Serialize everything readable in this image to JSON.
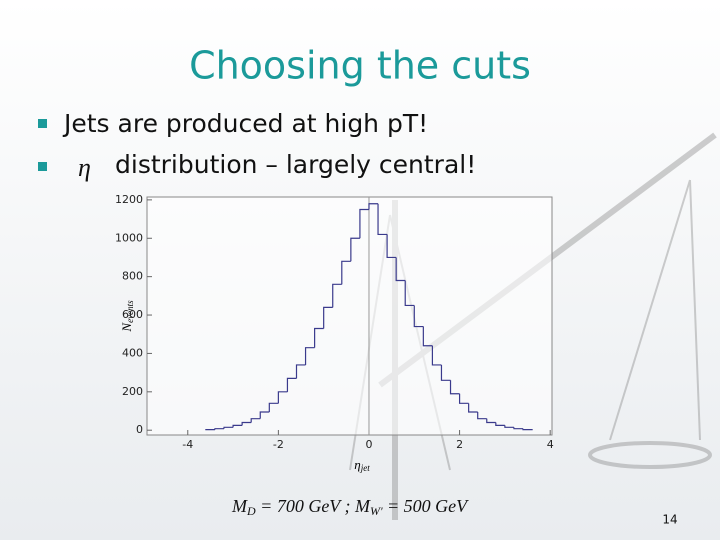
{
  "slide": {
    "title": "Choosing the cuts",
    "bullets": [
      "Jets are produced at high pT!",
      "distribution – largely central!"
    ],
    "bullet_symbol": "η",
    "caption_parts": [
      "M",
      "D",
      " = 700 GeV ; M",
      "W'",
      " = 500 GeV"
    ],
    "page_number": "14"
  },
  "chart_data": {
    "type": "histogram",
    "xlabel": {
      "main": "η",
      "sub": "jet"
    },
    "ylabel": {
      "main": "N",
      "sub": "events"
    },
    "bins": [
      -3.6,
      -3.4,
      -3.2,
      -3.0,
      -2.8,
      -2.6,
      -2.4,
      -2.2,
      -2.0,
      -1.8,
      -1.6,
      -1.4,
      -1.2,
      -1.0,
      -0.8,
      -0.6,
      -0.4,
      -0.2,
      0.0,
      0.2,
      0.4,
      0.6,
      0.8,
      1.0,
      1.2,
      1.4,
      1.6,
      1.8,
      2.0,
      2.2,
      2.4,
      2.6,
      2.8,
      3.0,
      3.2,
      3.4,
      3.6
    ],
    "values": [
      3,
      8,
      15,
      25,
      40,
      60,
      95,
      140,
      200,
      270,
      340,
      430,
      530,
      640,
      760,
      880,
      1000,
      1150,
      1180,
      1020,
      900,
      780,
      650,
      540,
      440,
      340,
      260,
      190,
      140,
      95,
      60,
      40,
      25,
      15,
      8,
      3
    ],
    "color": "#3a3a8c",
    "xlim": [
      -4.9,
      4.04
    ],
    "ylim": [
      -25,
      1215
    ],
    "xticks": [
      -4,
      -2,
      0,
      2,
      4
    ],
    "yticks": [
      0,
      200,
      400,
      600,
      800,
      1000,
      1200
    ]
  }
}
